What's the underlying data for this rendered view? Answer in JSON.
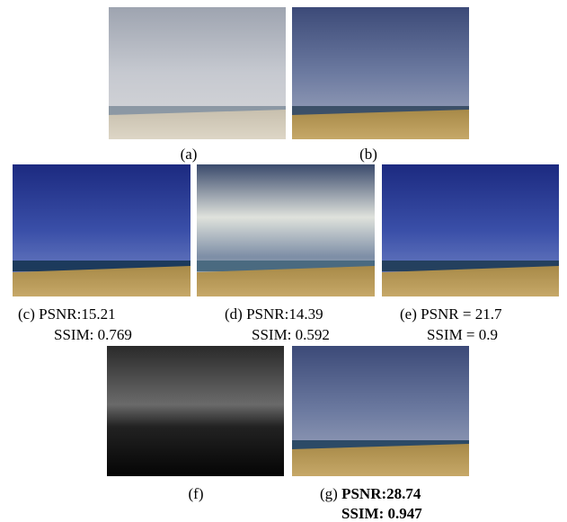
{
  "panels": [
    {
      "id": "(a)"
    },
    {
      "id": "(b)"
    },
    {
      "id": "(c)",
      "line1": "PSNR:15.21",
      "line2": "SSIM: 0.769"
    },
    {
      "id": "(d)",
      "line1": "PSNR:14.39",
      "line2": "SSIM: 0.592"
    },
    {
      "id": "(e)",
      "line1": "PSNR = 21.7",
      "line2": "SSIM = 0.9"
    },
    {
      "id": "(f)"
    },
    {
      "id": "(g)",
      "line1": "PSNR:28.74",
      "line2": "SSIM: 0.947"
    }
  ]
}
